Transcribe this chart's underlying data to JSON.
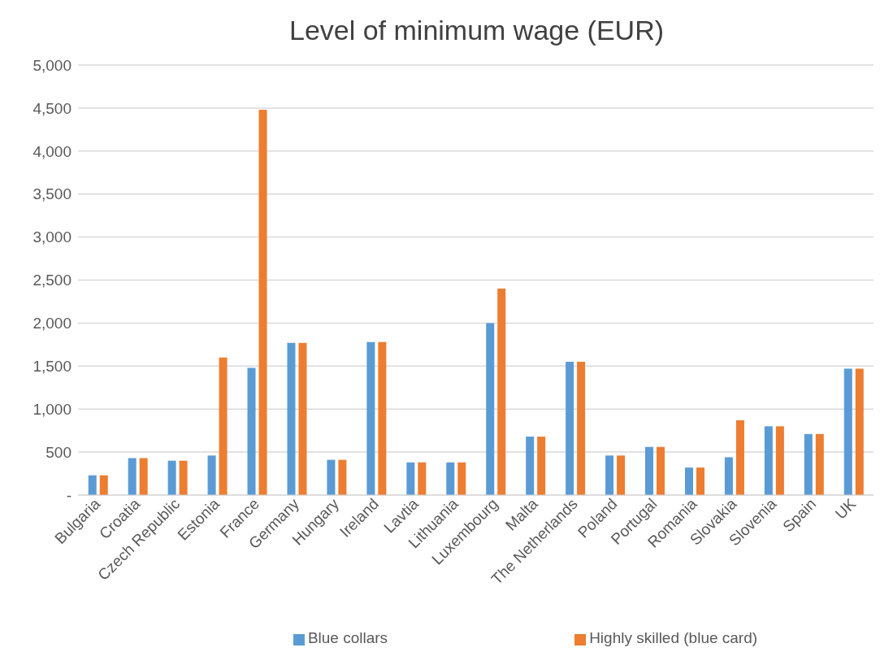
{
  "chart_data": {
    "type": "bar",
    "title": "Level of minimum wage (EUR)",
    "categories": [
      "Bulgaria",
      "Croatia",
      "Czech Republic",
      "Estonia",
      "France",
      "Germany",
      "Hungary",
      "Ireland",
      "Lavtia",
      "Lithuania",
      "Luxembourg",
      "Malta",
      "The Netherlands",
      "Poland",
      "Portugal",
      "Romania",
      "Slovakia",
      "Slovenia",
      "Spain",
      "UK"
    ],
    "series": [
      {
        "name": "Blue collars",
        "color": "#5b9bd5",
        "values": [
          230,
          430,
          400,
          460,
          1480,
          1770,
          410,
          1780,
          380,
          380,
          2000,
          680,
          1550,
          460,
          560,
          320,
          440,
          800,
          710,
          1470
        ]
      },
      {
        "name": "Highly skilled (blue card)",
        "color": "#ed7d31",
        "values": [
          230,
          430,
          400,
          1600,
          4480,
          1770,
          410,
          1780,
          380,
          380,
          2400,
          680,
          1550,
          460,
          560,
          320,
          870,
          800,
          710,
          1470
        ]
      }
    ],
    "ylim": [
      0,
      5000
    ],
    "yticks": [
      {
        "value": 0,
        "label": "-"
      },
      {
        "value": 500,
        "label": "500"
      },
      {
        "value": 1000,
        "label": "1,000"
      },
      {
        "value": 1500,
        "label": "1,500"
      },
      {
        "value": 2000,
        "label": "2,000"
      },
      {
        "value": 2500,
        "label": "2,500"
      },
      {
        "value": 3000,
        "label": "3,000"
      },
      {
        "value": 3500,
        "label": "3,500"
      },
      {
        "value": 4000,
        "label": "4,000"
      },
      {
        "value": 4500,
        "label": "4,500"
      },
      {
        "value": 5000,
        "label": "5,000"
      }
    ],
    "grid": "y",
    "legend": "bottom"
  }
}
